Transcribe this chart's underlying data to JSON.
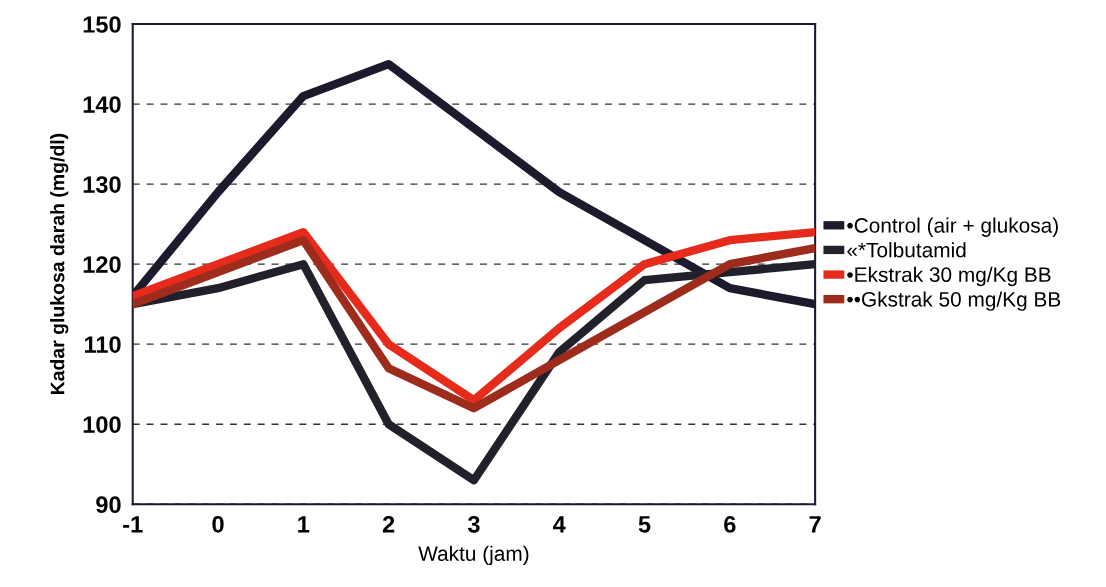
{
  "chart_data": {
    "type": "line",
    "xlabel": "Waktu (jam)",
    "ylabel": "Kadar glukosa darah (mg/dl)",
    "x": [
      -1,
      0,
      1,
      2,
      3,
      4,
      5,
      6,
      7
    ],
    "series": [
      {
        "name": "•Control (air + glukosa)",
        "color": "#1c1a2c",
        "values": [
          116,
          129,
          141,
          145,
          137,
          129,
          123,
          117,
          115
        ]
      },
      {
        "name": "«*Tolbutamid",
        "color": "#22202a",
        "values": [
          115,
          117,
          120,
          100,
          93,
          109,
          118,
          119,
          120
        ]
      },
      {
        "name": "•Ekstrak 30 mg/Kg BB",
        "color": "#e62a1c",
        "values": [
          116,
          120,
          124,
          110,
          103,
          112,
          120,
          123,
          124
        ]
      },
      {
        "name": "••Gkstrak 50 mg/Kg BB",
        "color": "#9e2c1c",
        "values": [
          115,
          119,
          123,
          107,
          102,
          108,
          114,
          120,
          122
        ]
      }
    ],
    "xlim": [
      -1,
      7
    ],
    "xticks": [
      -1,
      0,
      1,
      2,
      3,
      4,
      5,
      6,
      7
    ],
    "ylim": [
      90,
      150
    ],
    "yticks": [
      90,
      100,
      110,
      120,
      130,
      140,
      150
    ],
    "grid": "y",
    "legend": "right",
    "marker": "none",
    "line_style": "solid"
  }
}
